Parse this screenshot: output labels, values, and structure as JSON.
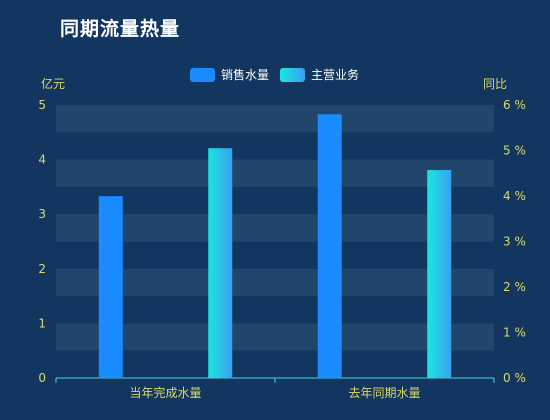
{
  "chart_data": {
    "type": "bar",
    "title": "同期流量热量",
    "categories": [
      "当年完成水量",
      "去年同期水量"
    ],
    "series": [
      {
        "name": "销售水量",
        "values": [
          3.33,
          4.83
        ],
        "axis": "left",
        "color": "#1a8cff"
      },
      {
        "name": "主营业务",
        "values": [
          5.05,
          4.57
        ],
        "axis": "right",
        "color_from": "#1ae6e0",
        "color_to": "#3aa0f0"
      }
    ],
    "y_left": {
      "label": "亿元",
      "min": 0,
      "max": 5,
      "ticks": [
        "0",
        "1",
        "2",
        "3",
        "4",
        "5"
      ]
    },
    "y_right": {
      "label": "同比",
      "min": 0,
      "max": 6,
      "ticks": [
        "0 %",
        "1 %",
        "2 %",
        "3 %",
        "4 %",
        "5 %",
        "6 %"
      ]
    },
    "legend": "top-center",
    "grid": "banded"
  }
}
